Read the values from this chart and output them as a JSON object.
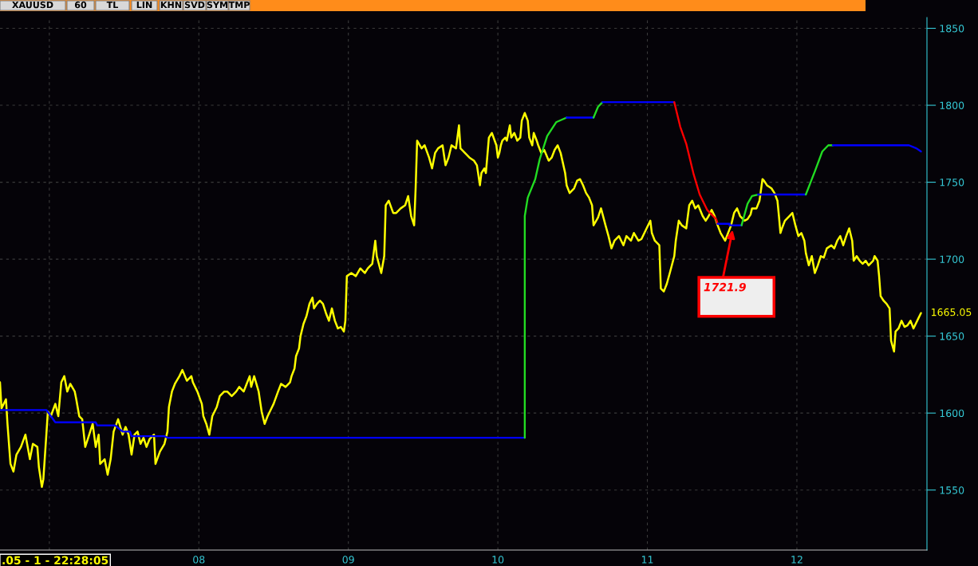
{
  "chart_data": {
    "type": "line",
    "title": "XAUUSD",
    "xlim": [
      6.67,
      12.87
    ],
    "xticks": [
      {
        "value": 7,
        "label": null
      },
      {
        "value": 8,
        "label": "08"
      },
      {
        "value": 9,
        "label": "09"
      },
      {
        "value": 10,
        "label": "10"
      },
      {
        "value": 11,
        "label": "11"
      },
      {
        "value": 12,
        "label": "12"
      }
    ],
    "ylim": [
      1511,
      1857
    ],
    "yticks": [
      1550,
      1600,
      1650,
      1700,
      1750,
      1800,
      1850
    ],
    "grid": true,
    "marker": "none",
    "line_style": "solid",
    "series": [
      {
        "color": "#ffff00",
        "x": [
          6.67,
          6.68,
          6.71,
          6.72,
          6.74,
          6.76,
          6.78,
          6.81,
          6.84,
          6.87,
          6.89,
          6.92,
          6.93,
          6.95,
          6.96,
          6.98,
          6.99,
          7.01,
          7.04,
          7.06,
          7.08,
          7.1,
          7.12,
          7.14,
          7.17,
          7.18,
          7.2,
          7.22,
          7.24,
          7.26,
          7.29,
          7.31,
          7.33,
          7.34,
          7.37,
          7.39,
          7.41,
          7.43,
          7.46,
          7.49,
          7.51,
          7.53,
          7.55,
          7.57,
          7.59,
          7.61,
          7.63,
          7.65,
          7.67,
          7.7,
          7.71,
          7.74,
          7.77,
          7.79,
          7.8,
          7.82,
          7.84,
          7.87,
          7.89,
          7.92,
          7.95,
          7.96,
          7.99,
          8.02,
          8.03,
          8.05,
          8.07,
          8.09,
          8.12,
          8.14,
          8.17,
          8.19,
          8.22,
          8.25,
          8.27,
          8.3,
          8.32,
          8.34,
          8.35,
          8.37,
          8.4,
          8.42,
          8.44,
          8.46,
          8.49,
          8.5,
          8.53,
          8.55,
          8.58,
          8.61,
          8.62,
          8.64,
          8.65,
          8.67,
          8.68,
          8.7,
          8.72,
          8.74,
          8.76,
          8.77,
          8.79,
          8.81,
          8.83,
          8.85,
          8.87,
          8.89,
          8.91,
          8.93,
          8.95,
          8.97,
          8.98,
          8.99,
          9.02,
          9.05,
          9.08,
          9.11,
          9.13,
          9.16,
          9.18,
          9.19,
          9.22,
          9.24,
          9.25,
          9.27,
          9.3,
          9.32,
          9.35,
          9.38,
          9.4,
          9.42,
          9.44,
          9.45,
          9.46,
          9.49,
          9.51,
          9.54,
          9.56,
          9.58,
          9.6,
          9.63,
          9.65,
          9.67,
          9.69,
          9.72,
          9.74,
          9.75,
          9.78,
          9.81,
          9.84,
          9.86,
          9.88,
          9.89,
          9.91,
          9.92,
          9.94,
          9.96,
          9.99,
          10.0,
          10.01,
          10.02,
          10.03,
          10.05,
          10.06,
          10.08,
          10.09,
          10.11,
          10.13,
          10.15,
          10.16,
          10.18,
          10.2,
          10.21,
          10.23,
          10.24,
          10.26,
          10.27,
          10.29,
          10.31,
          10.34,
          10.36,
          10.38,
          10.4,
          10.42,
          10.45,
          10.46,
          10.48,
          10.51,
          10.53,
          10.55,
          10.57,
          10.59,
          10.61,
          10.63,
          10.64,
          10.67,
          10.69,
          10.72,
          10.74,
          10.76,
          10.78,
          10.81,
          10.84,
          10.86,
          10.89,
          10.91,
          10.94,
          10.96,
          10.98,
          11.0,
          11.02,
          11.03,
          11.05,
          11.08,
          11.09,
          11.11,
          11.13,
          11.15,
          11.18,
          11.19,
          11.21,
          11.23,
          11.26,
          11.28,
          11.3,
          11.32,
          11.34,
          11.37,
          11.39,
          11.41,
          11.43,
          11.45,
          11.47,
          11.49,
          11.52,
          11.54,
          11.56,
          11.58,
          11.6,
          11.62,
          11.65,
          11.67,
          11.69,
          11.7,
          11.73,
          11.75,
          11.77,
          11.78,
          11.8,
          11.83,
          11.85,
          11.87,
          11.88,
          11.89,
          11.9,
          11.92,
          11.95,
          11.97,
          11.99,
          12.01,
          12.03,
          12.05,
          12.06,
          12.08,
          12.1,
          12.12,
          12.14,
          12.16,
          12.18,
          12.2,
          12.23,
          12.25,
          12.27,
          12.29,
          12.31,
          12.33,
          12.35,
          12.37,
          12.38,
          12.4,
          12.42,
          12.44,
          12.46,
          12.48,
          12.51,
          12.52,
          12.54,
          12.55,
          12.56,
          12.58,
          12.6,
          12.62,
          12.63,
          12.65,
          12.66,
          12.68,
          12.7,
          12.72,
          12.74,
          12.76,
          12.78,
          12.81,
          12.83
        ],
        "values": [
          1620,
          1603,
          1609,
          1593,
          1567,
          1562,
          1573,
          1578,
          1586,
          1570,
          1580,
          1578,
          1565,
          1552,
          1557,
          1586,
          1601,
          1598,
          1606,
          1598,
          1620,
          1624,
          1614,
          1619,
          1614,
          1609,
          1598,
          1596,
          1578,
          1584,
          1593,
          1578,
          1586,
          1567,
          1570,
          1560,
          1570,
          1588,
          1596,
          1586,
          1591,
          1586,
          1573,
          1586,
          1588,
          1580,
          1584,
          1578,
          1583,
          1586,
          1567,
          1575,
          1580,
          1588,
          1604,
          1614,
          1619,
          1624,
          1628,
          1621,
          1624,
          1620,
          1614,
          1606,
          1598,
          1593,
          1586,
          1598,
          1604,
          1611,
          1614,
          1614,
          1611,
          1614,
          1617,
          1614,
          1619,
          1624,
          1617,
          1624,
          1614,
          1601,
          1593,
          1598,
          1604,
          1606,
          1614,
          1619,
          1617,
          1620,
          1624,
          1629,
          1637,
          1642,
          1650,
          1658,
          1663,
          1671,
          1675,
          1668,
          1671,
          1673,
          1671,
          1665,
          1660,
          1668,
          1660,
          1655,
          1656,
          1653,
          1660,
          1689,
          1691,
          1689,
          1694,
          1691,
          1694,
          1697,
          1712,
          1702,
          1691,
          1702,
          1735,
          1738,
          1730,
          1730,
          1733,
          1735,
          1741,
          1728,
          1722,
          1746,
          1777,
          1772,
          1774,
          1766,
          1759,
          1769,
          1772,
          1774,
          1761,
          1766,
          1774,
          1772,
          1787,
          1772,
          1769,
          1766,
          1764,
          1761,
          1748,
          1756,
          1759,
          1756,
          1779,
          1782,
          1774,
          1766,
          1769,
          1774,
          1777,
          1779,
          1777,
          1787,
          1779,
          1782,
          1777,
          1779,
          1790,
          1795,
          1790,
          1779,
          1774,
          1782,
          1777,
          1774,
          1769,
          1771,
          1764,
          1766,
          1771,
          1774,
          1769,
          1756,
          1748,
          1743,
          1746,
          1751,
          1752,
          1748,
          1743,
          1740,
          1735,
          1722,
          1727,
          1733,
          1722,
          1715,
          1707,
          1712,
          1715,
          1709,
          1715,
          1712,
          1717,
          1712,
          1713,
          1717,
          1721,
          1725,
          1717,
          1712,
          1709,
          1681,
          1679,
          1684,
          1691,
          1702,
          1712,
          1725,
          1722,
          1720,
          1735,
          1738,
          1733,
          1735,
          1728,
          1725,
          1728,
          1732,
          1728,
          1722,
          1717,
          1712,
          1717,
          1722,
          1730,
          1733,
          1728,
          1725,
          1726,
          1729,
          1733,
          1733,
          1738,
          1752,
          1751,
          1748,
          1746,
          1743,
          1738,
          1728,
          1717,
          1720,
          1725,
          1728,
          1730,
          1722,
          1715,
          1717,
          1712,
          1704,
          1696,
          1702,
          1691,
          1696,
          1702,
          1701,
          1707,
          1709,
          1707,
          1712,
          1715,
          1709,
          1715,
          1720,
          1712,
          1699,
          1702,
          1699,
          1697,
          1699,
          1696,
          1699,
          1702,
          1699,
          1689,
          1676,
          1673,
          1671,
          1668,
          1647,
          1640,
          1653,
          1655,
          1660,
          1656,
          1657,
          1660,
          1655,
          1661,
          1665
        ]
      },
      {
        "color": "#0000ff",
        "x": [
          6.67,
          6.98,
          7.04,
          7.31,
          7.32,
          7.44,
          7.49,
          7.54,
          7.55,
          7.77,
          7.79,
          10.18
        ],
        "values": [
          1602,
          1602,
          1594,
          1594,
          1592,
          1592,
          1588,
          1588,
          1585,
          1585,
          1584,
          1584
        ]
      },
      {
        "color": "#22dd22",
        "x": [
          10.18,
          10.18,
          10.2,
          10.25,
          10.28,
          10.33,
          10.39,
          10.46
        ],
        "values": [
          1584,
          1728,
          1740,
          1752,
          1765,
          1780,
          1789,
          1792
        ]
      },
      {
        "color": "#0000ff",
        "x": [
          10.46,
          10.64
        ],
        "values": [
          1792,
          1792
        ]
      },
      {
        "color": "#22dd22",
        "x": [
          10.64,
          10.67,
          10.7
        ],
        "values": [
          1792,
          1799,
          1802
        ]
      },
      {
        "color": "#0000ff",
        "x": [
          10.7,
          11.18
        ],
        "values": [
          1802,
          1802
        ]
      },
      {
        "color": "#ff0000",
        "x": [
          11.18,
          11.22,
          11.26,
          11.31,
          11.35,
          11.4,
          11.46,
          11.47
        ],
        "values": [
          1802,
          1786,
          1775,
          1755,
          1742,
          1732,
          1726,
          1723
        ]
      },
      {
        "color": "#0000ff",
        "x": [
          11.47,
          11.55,
          11.55,
          11.63
        ],
        "values": [
          1723,
          1723,
          1722,
          1722
        ]
      },
      {
        "color": "#22dd22",
        "x": [
          11.63,
          11.67,
          11.7,
          11.74
        ],
        "values": [
          1722,
          1736,
          1741,
          1742
        ]
      },
      {
        "color": "#0000ff",
        "x": [
          11.74,
          12.06
        ],
        "values": [
          1742,
          1742
        ]
      },
      {
        "color": "#22dd22",
        "x": [
          12.06,
          12.12,
          12.17,
          12.21,
          12.24
        ],
        "values": [
          1742,
          1757,
          1770,
          1774,
          1774
        ]
      },
      {
        "color": "#0000ff",
        "x": [
          12.24,
          12.75,
          12.8,
          12.83
        ],
        "values": [
          1774,
          1774,
          1772,
          1770
        ]
      }
    ],
    "annotations": [
      "60",
      "TL",
      "LIN",
      "KHN",
      "SVD",
      "SYM",
      "TMP",
      ".05 - 1 - 22:28:05",
      {
        "text": "1721.9",
        "x": 11.57,
        "y": 1719
      },
      "1665.05"
    ]
  }
}
